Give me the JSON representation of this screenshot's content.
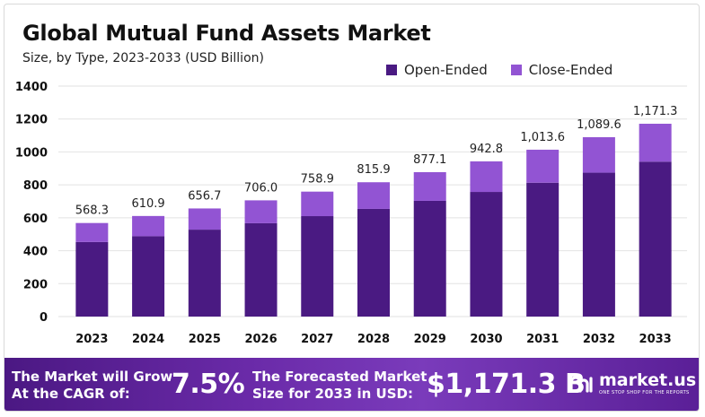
{
  "header": {
    "title": "Global Mutual Fund Assets Market",
    "subtitle": "Size, by Type, 2023-2033 (USD Billion)"
  },
  "colors": {
    "open_ended": "#4a1a82",
    "close_ended": "#9254d3",
    "grid": "#e2e2e2"
  },
  "chart_data": {
    "type": "bar",
    "stacked": true,
    "categories": [
      "2023",
      "2024",
      "2025",
      "2026",
      "2027",
      "2028",
      "2029",
      "2030",
      "2031",
      "2032",
      "2033"
    ],
    "series": [
      {
        "name": "Open-Ended",
        "values": [
          453,
          488,
          528,
          567,
          610,
          654,
          703,
          757,
          813,
          874,
          941
        ]
      },
      {
        "name": "Close-Ended",
        "values": [
          115.3,
          122.9,
          128.7,
          139.0,
          148.9,
          161.9,
          174.1,
          185.8,
          200.6,
          215.6,
          230.3
        ]
      }
    ],
    "totals": [
      568.3,
      610.9,
      656.7,
      706.0,
      758.9,
      815.9,
      877.1,
      942.8,
      1013.6,
      1089.6,
      1171.3
    ],
    "total_labels": [
      "568.3",
      "610.9",
      "656.7",
      "706.0",
      "758.9",
      "815.9",
      "877.1",
      "942.8",
      "1,013.6",
      "1,089.6",
      "1,171.3"
    ],
    "yticks": [
      "0",
      "200",
      "400",
      "600",
      "800",
      "1000",
      "1200",
      "1400"
    ],
    "ylim": [
      0,
      1400
    ],
    "grid": true,
    "legend_position": "top-right"
  },
  "banner": {
    "cagr_text_line1": "The Market will Grow",
    "cagr_text_line2": "At the CAGR of:",
    "cagr_value": "7.5%",
    "forecast_text_line1": "The Forecasted Market",
    "forecast_text_line2": "Size for 2033 in USD:",
    "forecast_value": "$1,171.3 B",
    "logo_icon": "market-us-logo-icon",
    "logo_name": "market.us",
    "logo_tagline": "ONE STOP SHOP FOR THE REPORTS"
  }
}
